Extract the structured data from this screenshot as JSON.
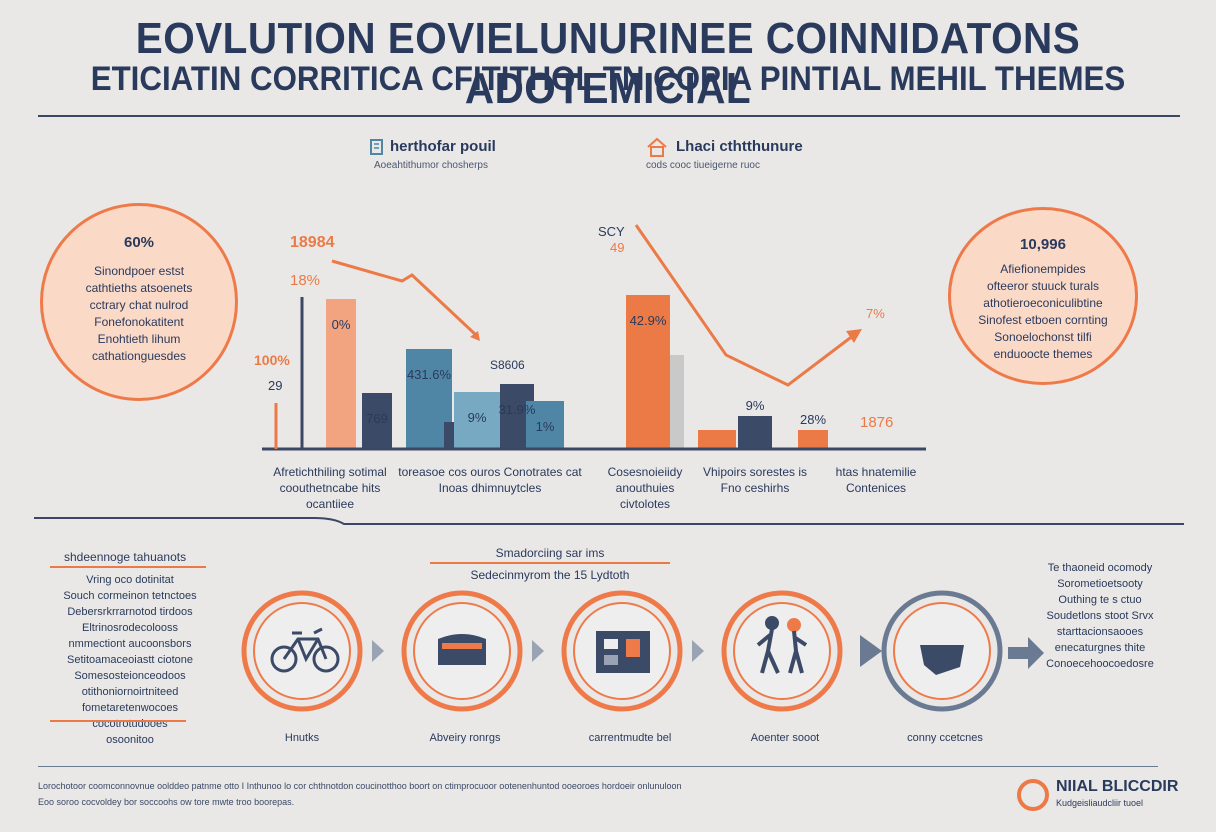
{
  "header": {
    "title_line1": "EOVLUTION EOVIELUNURINEE COINNIDATONS ADOTEMICIAL",
    "title_line2": "ETICIATIN CORRITICA CFITITHOL TN COPIA PINTIAL MEHIL THEMES"
  },
  "legend": [
    {
      "title": "herthofar pouil",
      "sub": "Aoeahtithumor chosherps"
    },
    {
      "title": "Lhaci cthtthunure",
      "sub": "cods  cooc tiueigerne ruoc"
    }
  ],
  "left_bubble": {
    "value": "60%",
    "lines": [
      "Sinondpoer estst",
      "cathtieths atsoenets",
      "cctrary chat nulrod",
      "Fonefonokatitent",
      "Enohtieth lihum",
      "cathationguesdes"
    ]
  },
  "right_bubble": {
    "value": "10,996",
    "lines": [
      "Afiefionempides",
      "ofteeror stuuck turals",
      "athotieroeconiculibtine",
      "Sinofest etboen cornting",
      "Sonoelochonst tilfi",
      "enduoocte themes"
    ]
  },
  "chart_data": {
    "type": "bar",
    "colors": {
      "orange": "#ec7a47",
      "light_orange": "#f2a37f",
      "navy": "#3b4a66",
      "blue": "#4f86a6",
      "light_blue": "#78a9c2",
      "grey": "#c9c9c9"
    },
    "bars": [
      {
        "name": "bar-1",
        "value": 0,
        "color": "navy",
        "label": ""
      },
      {
        "name": "bar-2",
        "value": 150,
        "color": "light_orange",
        "label": "0%"
      },
      {
        "name": "bar-3",
        "value": 56,
        "color": "navy",
        "label": "769"
      },
      {
        "name": "bar-4",
        "value": 100,
        "color": "blue",
        "label": "431.6%"
      },
      {
        "name": "bar-5",
        "value": 27,
        "color": "navy",
        "label": ""
      },
      {
        "name": "bar-6",
        "value": 57,
        "color": "light_blue",
        "label": "9%"
      },
      {
        "name": "bar-7",
        "value": 65,
        "color": "navy",
        "label": "31.9%"
      },
      {
        "name": "bar-8",
        "value": 48,
        "color": "blue",
        "label": "1%"
      },
      {
        "name": "bar-9",
        "value": 154,
        "color": "orange",
        "label": "42.9%"
      },
      {
        "name": "bar-10",
        "value": 19,
        "color": "orange",
        "label": ""
      },
      {
        "name": "bar-11",
        "value": 33,
        "color": "navy",
        "label": "9%"
      },
      {
        "name": "bar-12",
        "value": 19,
        "color": "orange",
        "label": "28%"
      }
    ],
    "free_labels": [
      {
        "name": "label-18984",
        "text": "18984"
      },
      {
        "name": "label-18pct",
        "text": "18%"
      },
      {
        "name": "label-100pct",
        "text": "100%"
      },
      {
        "name": "label-29",
        "text": "29"
      },
      {
        "name": "label-s8606",
        "text": "S8606"
      },
      {
        "name": "label-scy",
        "text": "SCY"
      },
      {
        "name": "label-49",
        "text": "49"
      },
      {
        "name": "label-7pct",
        "text": "7%"
      },
      {
        "name": "label-1876",
        "text": "1876"
      }
    ],
    "categories": [
      {
        "lines": [
          "Afretichthiling sotimal",
          "coouthetncabe hits",
          "ocantiiee"
        ]
      },
      {
        "lines": [
          "toreasoe cos ouros Conotrates cat",
          "Inoas dhimnuytcles"
        ]
      },
      {
        "lines": [
          "Cosesnoieiidy",
          "anouthuies",
          "civtolotes"
        ]
      },
      {
        "lines": [
          "Vhipoirs sorestes is",
          "Fno ceshirhs"
        ]
      },
      {
        "lines": [
          "htas hnatemilie",
          "Contenices"
        ]
      }
    ]
  },
  "process": {
    "heading_left": "shdeennoge tahuanots",
    "side_left_lines": [
      "Vring oco dotinitat",
      "Souch cormeinon tetnctoes",
      "Debersrkrrarnotod tirdoos",
      "Eltrinosrodecolooss",
      "nmmectiont aucoonsbors",
      "Setitoamaceoiastt ciotone",
      "Somesosteionceodoos",
      "otithoniornoirtniteed",
      "fometaretenwocoes",
      "cocotrotudooes",
      "osoonitoo"
    ],
    "heading_mid_line1": "Smadorciing sar ims",
    "heading_mid_line2": "Sedecinmyrom the 15 Lydtoth",
    "side_right_lines": [
      "Te thaoneid ocomody",
      "Sorometioetsooty",
      "Outhing te s ctuo",
      "Soudetlons stoot Srvx",
      "starttacionsaooes",
      "enecaturgnes thite",
      "Conoecehoocoedosre"
    ],
    "steps": [
      {
        "label": "Hnutks",
        "icon": "bicycle-icon"
      },
      {
        "label": "Abveiry ronrgs",
        "icon": "wagon-icon"
      },
      {
        "label": "carrentmudte bel",
        "icon": "machine-icon"
      },
      {
        "label": "Aoenter sooot",
        "icon": "people-icon"
      },
      {
        "label": "conny ccetcnes",
        "icon": "car-icon"
      }
    ]
  },
  "footer": {
    "line1": "Lorochotoor coomconnovnue oolddeo patnme otto I Inthunoo lo cor chthnotdon coucinotthoo boort on ctimprocuoor ootenenhuntod ooeoroes hordoeir onlunuloon",
    "line2": "Eoo soroo cocvoldey bor soccoohs ow tore mwte troo boorepas."
  },
  "logo": {
    "title": "NIIAL BLICCDIR",
    "sub": "Kudgeisliaudcliir tuoel"
  }
}
